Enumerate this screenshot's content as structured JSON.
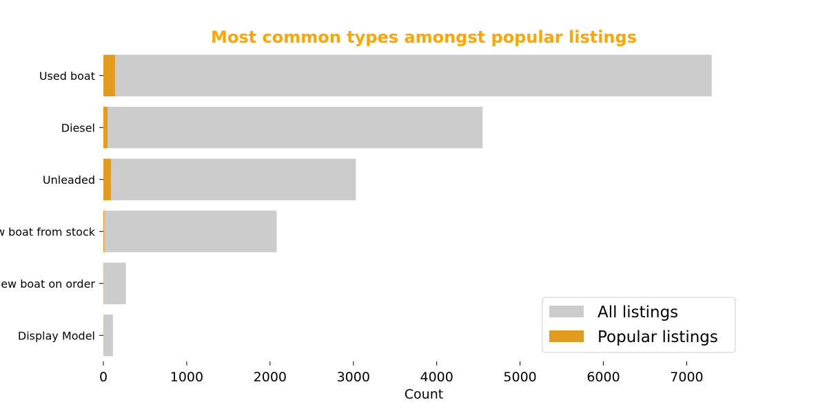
{
  "chart_data": {
    "type": "bar",
    "orientation": "horizontal",
    "title": "Most common types amongst popular listings",
    "title_color": "#FFA500",
    "xlabel": "Count",
    "ylabel": "",
    "xlim": [
      0,
      7600
    ],
    "xticks": [
      0,
      1000,
      2000,
      3000,
      4000,
      5000,
      6000,
      7000
    ],
    "categories": [
      "Used boat",
      "Diesel",
      "Unleaded",
      "New boat from stock",
      "New boat on order",
      "Display Model"
    ],
    "series": [
      {
        "name": "All listings",
        "color": "#cccccc",
        "values": [
          7300,
          4550,
          3030,
          2080,
          270,
          115
        ]
      },
      {
        "name": "Popular listings",
        "color": "#e09b20",
        "values": [
          140,
          50,
          90,
          10,
          2,
          1
        ]
      }
    ],
    "legend_position": "lower-right",
    "grid": false
  }
}
